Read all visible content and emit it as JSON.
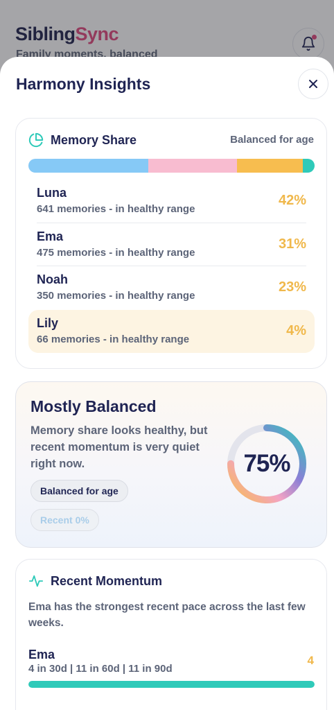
{
  "app": {
    "title_part1": "Sibling",
    "title_part2": "Sync",
    "subtitle": "Family moments, balanced"
  },
  "sheet": {
    "title": "Harmony Insights",
    "close_icon": "close-icon"
  },
  "memory_share": {
    "heading": "Memory Share",
    "icon": "pie-chart-icon",
    "status": "Balanced for age",
    "segments": [
      {
        "name": "Luna",
        "fraction": 0.42,
        "color": "#86c9f6"
      },
      {
        "name": "Ema",
        "fraction": 0.31,
        "color": "#f8bcd0"
      },
      {
        "name": "Noah",
        "fraction": 0.23,
        "color": "#f7bd4f"
      },
      {
        "name": "Lily",
        "fraction": 0.04,
        "color": "#2fcab9"
      }
    ],
    "rows": [
      {
        "name": "Luna",
        "detail": "641 memories - in healthy range",
        "percent": "42%"
      },
      {
        "name": "Ema",
        "detail": "475 memories - in healthy range",
        "percent": "31%"
      },
      {
        "name": "Noah",
        "detail": "350 memories - in healthy range",
        "percent": "23%"
      },
      {
        "name": "Lily",
        "detail": "66 memories - in healthy range",
        "percent": "4%"
      }
    ]
  },
  "balance": {
    "title": "Mostly Balanced",
    "description": "Memory share looks healthy, but recent momentum is very quiet right now.",
    "chip_age": "Balanced for age",
    "chip_recent": "Recent 0%",
    "score_text": "75%",
    "score_fraction": 0.75
  },
  "momentum": {
    "heading": "Recent Momentum",
    "icon": "activity-pulse-icon",
    "description": "Ema has the strongest recent pace across the last few weeks.",
    "leader": {
      "name": "Ema",
      "detail": "4 in 30d | 11 in 60d | 11 in 90d",
      "value": "4",
      "fill_fraction": 1.0
    }
  },
  "colors": {
    "navy": "#1f2453",
    "pink": "#e0487d",
    "gold": "#f0b84b",
    "teal": "#2fcab9",
    "highlight": "#fdf4e2"
  }
}
